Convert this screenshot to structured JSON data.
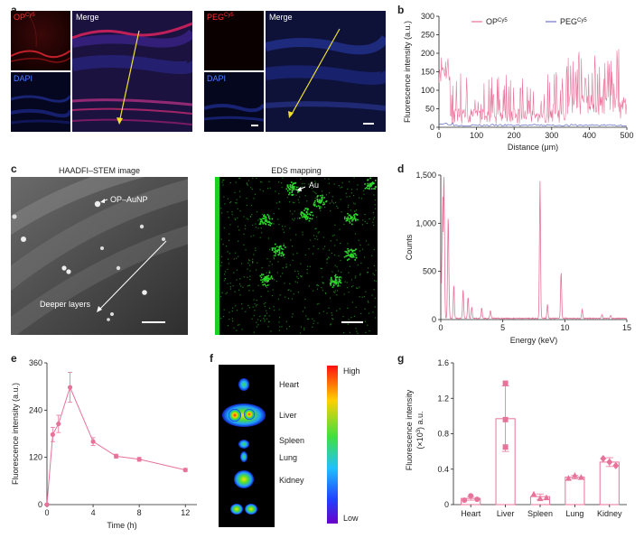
{
  "panels": {
    "a": "a",
    "b": "b",
    "c": "c",
    "d": "d",
    "e": "e",
    "f": "f",
    "g": "g"
  },
  "panel_a": {
    "op_label": "OP",
    "op_sup": "Cy5",
    "peg_label": "PEG",
    "peg_sup": "Cy5",
    "dapi_label": "DAPI",
    "merge_label": "Merge"
  },
  "panel_c": {
    "haadf_title": "HAADFI–STEM image",
    "eds_title": "EDS mapping",
    "opaunp_label": "OP–AuNP",
    "au_label": "Au",
    "deeper_label": "Deeper layers"
  },
  "panel_f": {
    "organs": [
      "Heart",
      "Liver",
      "Spleen",
      "Lung",
      "Kidney"
    ],
    "high_label": "High",
    "low_label": "Low"
  },
  "colors": {
    "pink": "#e8739a",
    "blue": "#6f76c9",
    "pinkFill": "#e8739a"
  },
  "chart_data": [
    {
      "id": "b",
      "type": "line",
      "xlabel": "Distance (μm)",
      "ylabel": "Fluorescence intensity (a.u.)",
      "xlim": [
        0,
        500
      ],
      "ylim": [
        0,
        300
      ],
      "xticks": [
        0,
        100,
        200,
        300,
        400,
        500
      ],
      "yticks": [
        0,
        50,
        100,
        150,
        200,
        250,
        300
      ],
      "legend_position": "top",
      "series": [
        {
          "name": "OP",
          "name_sup": "Cy5",
          "color": "#e8739a"
        },
        {
          "name": "PEG",
          "name_sup": "Cy5",
          "color": "#6f76c9"
        }
      ]
    },
    {
      "id": "d",
      "type": "line",
      "xlabel": "Energy (keV)",
      "ylabel": "Counts",
      "xlim": [
        0,
        15
      ],
      "ylim": [
        0,
        1500
      ],
      "xticks": [
        0,
        5,
        10,
        15
      ],
      "yticks": [
        0,
        500,
        1000,
        1500
      ],
      "ytick_labels": [
        "0",
        "500",
        "1,000",
        "1,500"
      ],
      "peaks": [
        [
          0.25,
          1500
        ],
        [
          0.6,
          1050
        ],
        [
          1.05,
          350
        ],
        [
          1.8,
          300
        ],
        [
          2.2,
          220
        ],
        [
          2.5,
          120
        ],
        [
          3.3,
          110
        ],
        [
          4.0,
          80
        ],
        [
          8.0,
          1430
        ],
        [
          8.6,
          150
        ],
        [
          9.7,
          480
        ],
        [
          11.4,
          90
        ],
        [
          13.0,
          40
        ],
        [
          13.7,
          30
        ]
      ],
      "series": [
        {
          "name": "",
          "color": "#e8739a"
        }
      ]
    },
    {
      "id": "e",
      "type": "line",
      "xlabel": "Time (h)",
      "ylabel": "Fluorescence intensity (a.u.)",
      "xlim": [
        0,
        13
      ],
      "ylim": [
        0,
        360
      ],
      "xticks": [
        0,
        4,
        8,
        12
      ],
      "yticks": [
        0,
        120,
        240,
        360
      ],
      "x": [
        0,
        0.5,
        1,
        2,
        4,
        6,
        8,
        12
      ],
      "series": [
        {
          "name": "",
          "color": "#e8739a",
          "values": [
            0,
            178,
            205,
            298,
            160,
            123,
            115,
            88
          ],
          "err": [
            0,
            18,
            22,
            38,
            10,
            5,
            5,
            4
          ]
        }
      ]
    },
    {
      "id": "g",
      "type": "bar",
      "xlabel": "",
      "ylabel": "Fluorescence intensity",
      "ylabel2": "(×10",
      "ylabel2_sup": "3",
      "ylabel2_rest": ") a.u.",
      "categories": [
        "Heart",
        "Liver",
        "Spleen",
        "Lung",
        "Kidney"
      ],
      "ylim": [
        0,
        1.6
      ],
      "yticks": [
        0,
        0.4,
        0.8,
        1.2,
        1.6
      ],
      "values": [
        0.07,
        0.97,
        0.09,
        0.31,
        0.48
      ],
      "err": [
        0.02,
        0.37,
        0.03,
        0.02,
        0.05
      ],
      "points": [
        [
          0.05,
          0.1,
          0.06
        ],
        [
          1.37,
          0.96,
          0.65
        ],
        [
          0.12,
          0.07,
          0.08
        ],
        [
          0.3,
          0.33,
          0.31
        ],
        [
          0.52,
          0.48,
          0.44
        ]
      ],
      "color": "#e8739a"
    }
  ]
}
